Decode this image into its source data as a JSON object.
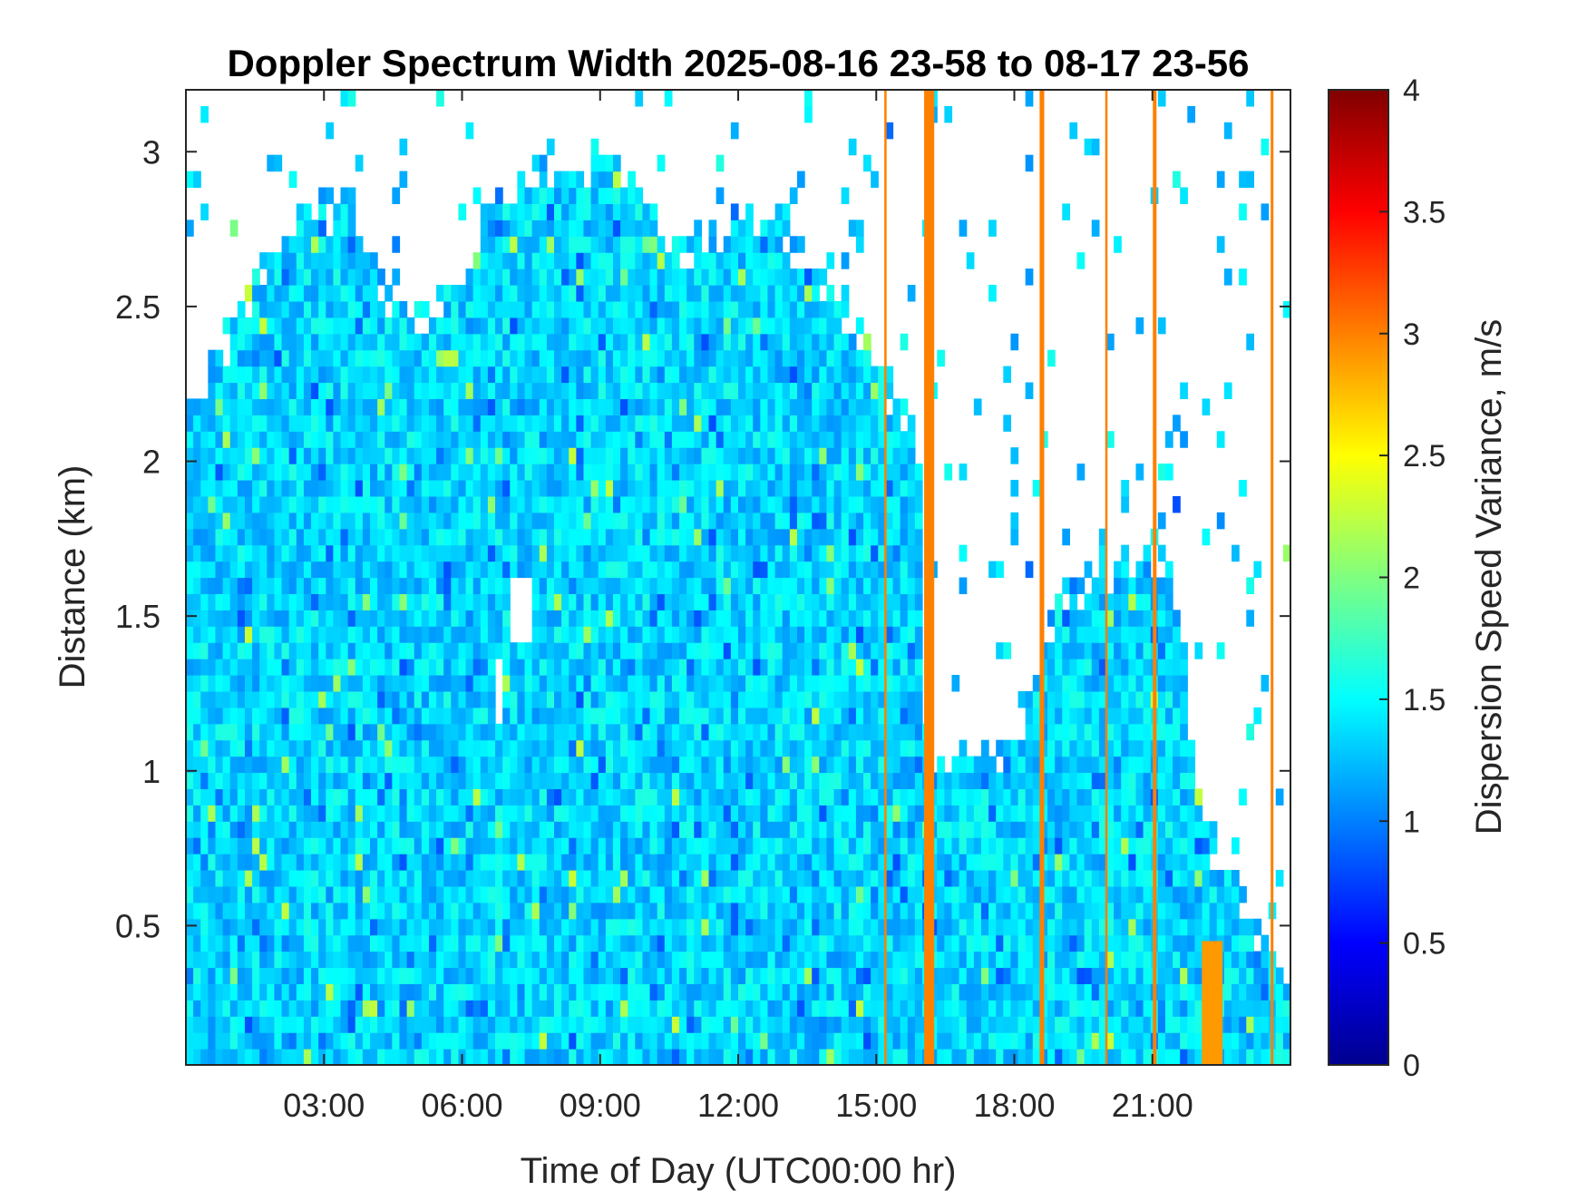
{
  "chart_data": {
    "type": "heatmap",
    "title": "Doppler Spectrum Width 2025-08-16 23-58 to 08-17 23-56",
    "xlabel": "Time of Day (UTC00:00 hr)",
    "ylabel": "Distance (km)",
    "colorbar_label": "Dispersion Speed Variance, m/s",
    "colormap": "jet",
    "x_unit": "hours",
    "xlim": [
      0,
      24
    ],
    "ylim": [
      0.05,
      3.2
    ],
    "clim": [
      0,
      4
    ],
    "x_ticks": [
      3,
      6,
      9,
      12,
      15,
      18,
      21
    ],
    "x_tick_labels": [
      "03:00",
      "06:00",
      "09:00",
      "12:00",
      "15:00",
      "18:00",
      "21:00"
    ],
    "y_ticks": [
      0.5,
      1,
      1.5,
      2,
      2.5,
      3
    ],
    "y_tick_labels": [
      "0.5",
      "1",
      "1.5",
      "2",
      "2.5",
      "3"
    ],
    "colorbar_ticks": [
      0,
      0.5,
      1,
      1.5,
      2,
      2.5,
      3,
      3.5,
      4
    ],
    "colorbar_tick_labels": [
      "0",
      "0.5",
      "1",
      "1.5",
      "2",
      "2.5",
      "3",
      "3.5",
      "4"
    ],
    "grid": false,
    "typical_value": 1.35,
    "signal_top_km": [
      {
        "t": 0.0,
        "h": 2.2
      },
      {
        "t": 0.5,
        "h": 2.3
      },
      {
        "t": 1.0,
        "h": 2.45
      },
      {
        "t": 1.5,
        "h": 2.6
      },
      {
        "t": 2.0,
        "h": 2.7
      },
      {
        "t": 2.5,
        "h": 2.75
      },
      {
        "t": 3.0,
        "h": 2.8
      },
      {
        "t": 3.5,
        "h": 2.9
      },
      {
        "t": 4.0,
        "h": 2.6
      },
      {
        "t": 4.5,
        "h": 2.55
      },
      {
        "t": 5.0,
        "h": 2.5
      },
      {
        "t": 5.5,
        "h": 2.5
      },
      {
        "t": 6.0,
        "h": 2.6
      },
      {
        "t": 6.5,
        "h": 2.8
      },
      {
        "t": 7.0,
        "h": 2.85
      },
      {
        "t": 7.5,
        "h": 2.9
      },
      {
        "t": 8.0,
        "h": 2.95
      },
      {
        "t": 8.5,
        "h": 2.95
      },
      {
        "t": 9.0,
        "h": 3.0
      },
      {
        "t": 9.5,
        "h": 2.95
      },
      {
        "t": 10.0,
        "h": 2.85
      },
      {
        "t": 10.5,
        "h": 2.75
      },
      {
        "t": 11.0,
        "h": 2.7
      },
      {
        "t": 11.5,
        "h": 2.75
      },
      {
        "t": 12.0,
        "h": 2.75
      },
      {
        "t": 12.5,
        "h": 2.75
      },
      {
        "t": 13.0,
        "h": 2.75
      },
      {
        "t": 13.5,
        "h": 2.65
      },
      {
        "t": 14.0,
        "h": 2.55
      },
      {
        "t": 14.5,
        "h": 2.45
      },
      {
        "t": 15.0,
        "h": 2.3
      },
      {
        "t": 15.5,
        "h": 2.15
      },
      {
        "t": 16.0,
        "h": 2.0
      },
      {
        "t": 16.1,
        "h": 1.0
      },
      {
        "t": 17.0,
        "h": 1.05
      },
      {
        "t": 18.0,
        "h": 1.1
      },
      {
        "t": 19.0,
        "h": 1.6
      },
      {
        "t": 20.0,
        "h": 1.65
      },
      {
        "t": 21.0,
        "h": 1.7
      },
      {
        "t": 21.5,
        "h": 1.6
      },
      {
        "t": 22.0,
        "h": 0.9
      },
      {
        "t": 22.5,
        "h": 0.7
      },
      {
        "t": 23.0,
        "h": 0.6
      },
      {
        "t": 23.5,
        "h": 0.4
      },
      {
        "t": 24.0,
        "h": 0.3
      }
    ],
    "cloud_clear_regions": [
      {
        "t0": 7.0,
        "t1": 7.6,
        "h0": 1.4,
        "h1": 1.6
      },
      {
        "t0": 6.8,
        "t1": 6.95,
        "h0": 1.15,
        "h1": 1.35
      }
    ],
    "high_value_streaks": [
      {
        "t": 15.2,
        "h0": 0.05,
        "h1": 3.2,
        "value": 3.0,
        "width_hr": 0.05
      },
      {
        "t": 16.15,
        "h0": 0.05,
        "h1": 3.2,
        "value": 3.0,
        "width_hr": 0.22
      },
      {
        "t": 18.6,
        "h0": 0.05,
        "h1": 3.2,
        "value": 3.0,
        "width_hr": 0.1
      },
      {
        "t": 20.0,
        "h0": 0.05,
        "h1": 3.2,
        "value": 3.0,
        "width_hr": 0.05
      },
      {
        "t": 21.05,
        "h0": 0.05,
        "h1": 3.2,
        "value": 3.0,
        "width_hr": 0.08
      },
      {
        "t": 23.6,
        "h0": 0.05,
        "h1": 3.2,
        "value": 3.0,
        "width_hr": 0.06
      },
      {
        "t": 22.3,
        "h0": 0.05,
        "h1": 0.45,
        "value": 2.9,
        "width_hr": 0.45
      }
    ]
  }
}
